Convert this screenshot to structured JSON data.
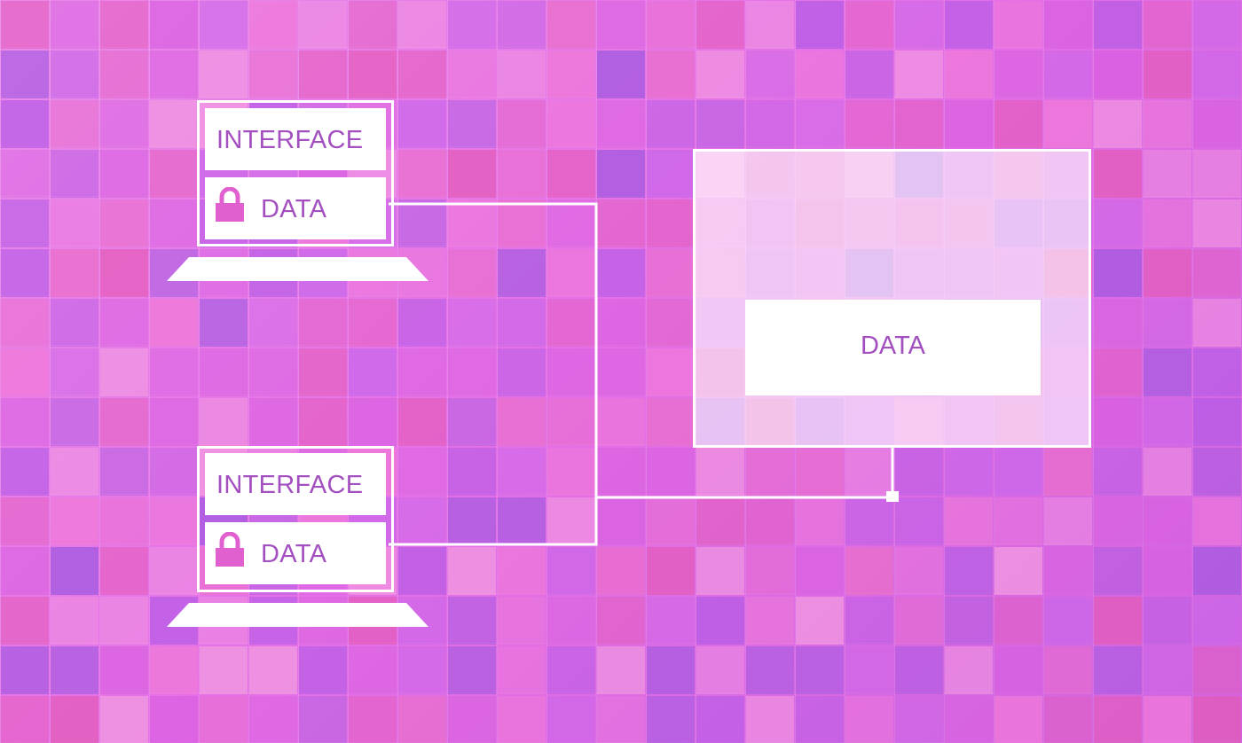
{
  "laptops": [
    {
      "interface_label": "INTERFACE",
      "data_label": "DATA"
    },
    {
      "interface_label": "INTERFACE",
      "data_label": "DATA"
    }
  ],
  "server": {
    "data_label": "DATA"
  },
  "colors": {
    "background": "#e571e6",
    "label_text": "#a34fc0",
    "panel": "#ffffff",
    "line": "#ffffff"
  }
}
